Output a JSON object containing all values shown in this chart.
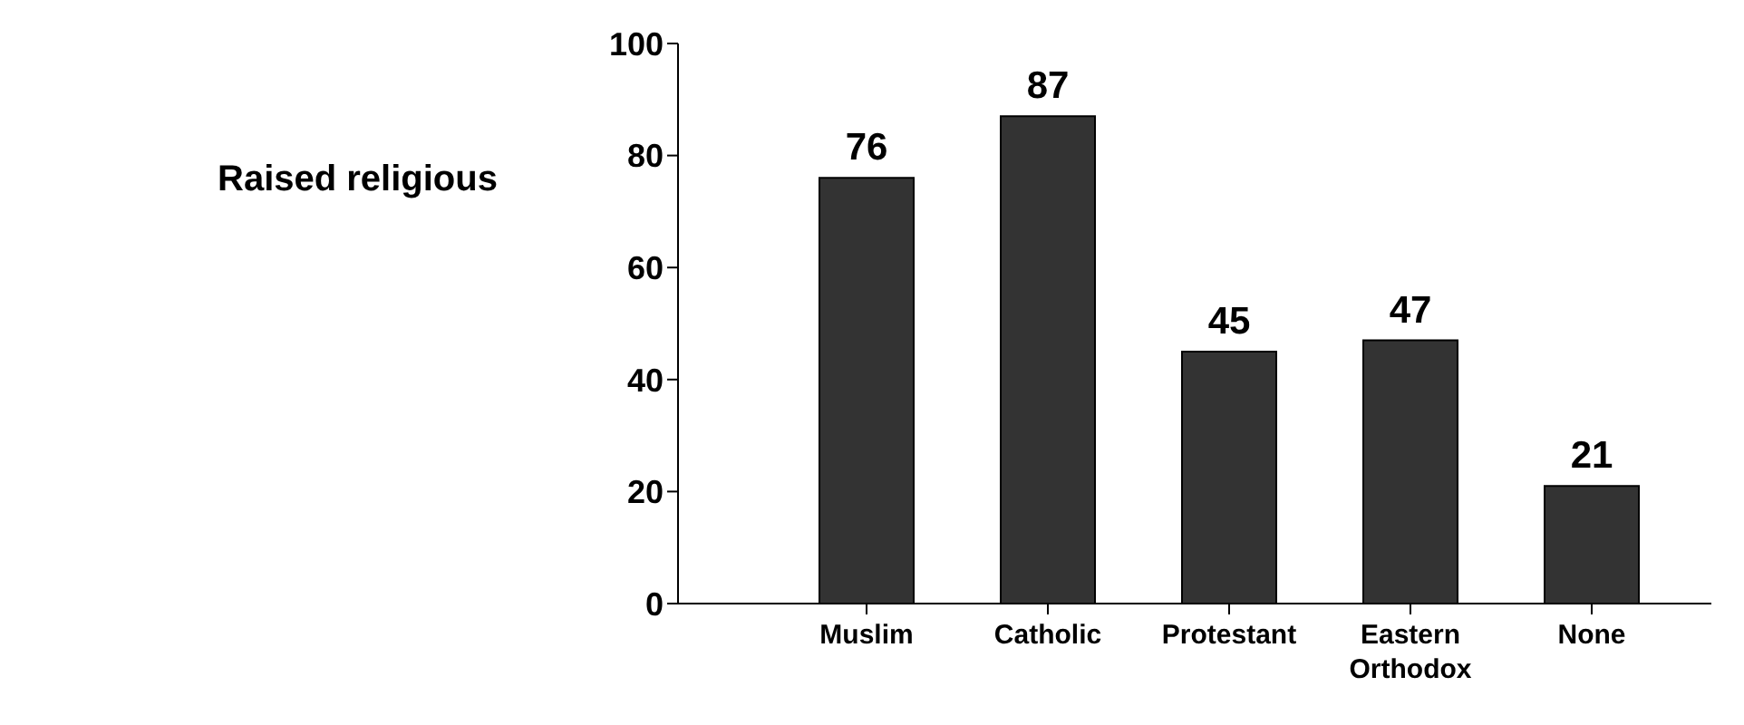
{
  "chart_data": {
    "type": "bar",
    "ylabel": "Raised religious",
    "categories": [
      "Muslim",
      "Catholic",
      "Protestant",
      "Eastern Orthodox",
      "None"
    ],
    "values": [
      76,
      87,
      45,
      47,
      21
    ],
    "color": "#333333",
    "ylim": [
      0,
      100
    ],
    "yticks": [
      0,
      20,
      40,
      60,
      80,
      100
    ],
    "grid": false,
    "legend": false,
    "data_labels": true
  }
}
